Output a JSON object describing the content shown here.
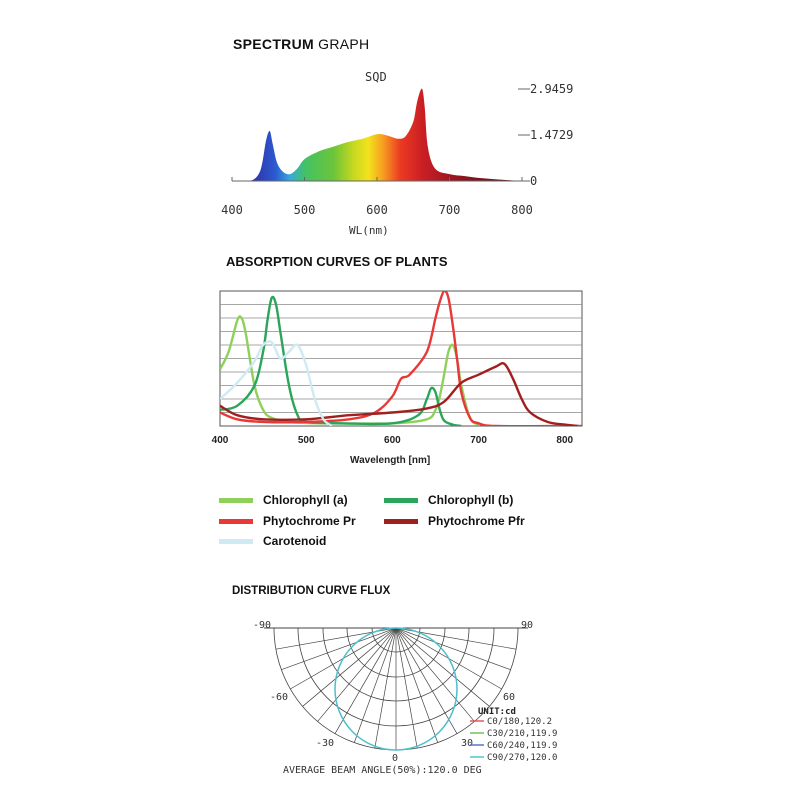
{
  "sections": {
    "spectrum_title_bold": "SPECTRUM",
    "spectrum_title_light": "GRAPH",
    "absorption_title": "ABSORPTION CURVES OF PLANTS",
    "distribution_title": "DISTRIBUTION CURVE FLUX"
  },
  "chart_data": [
    {
      "type": "area",
      "label_top": "SQD",
      "xlabel": "WL(nm)",
      "xlim": [
        400,
        800
      ],
      "xticks": [
        "400",
        "500",
        "600",
        "700",
        "800"
      ],
      "ylim": [
        0,
        2.9459
      ],
      "yticks": [
        "2.9459",
        "1.4729",
        "0"
      ],
      "color_scale": "wavelength spectrum",
      "x": [
        415,
        430,
        440,
        447,
        452,
        456,
        462,
        470,
        480,
        490,
        500,
        520,
        540,
        560,
        580,
        600,
        615,
        630,
        640,
        650,
        655,
        660,
        663,
        666,
        670,
        680,
        700,
        720,
        740,
        760,
        780,
        800
      ],
      "y": [
        0,
        0.05,
        0.4,
        1.3,
        1.6,
        1.2,
        0.6,
        0.3,
        0.22,
        0.4,
        0.7,
        0.95,
        1.1,
        1.25,
        1.35,
        1.5,
        1.45,
        1.35,
        1.45,
        1.9,
        2.5,
        2.9,
        2.9,
        2.3,
        1.1,
        0.4,
        0.22,
        0.16,
        0.1,
        0.06,
        0.03,
        0
      ]
    },
    {
      "type": "line",
      "xlabel": "Wavelength [nm]",
      "xlim": [
        400,
        820
      ],
      "xticks": [
        "400",
        "500",
        "600",
        "700",
        "800"
      ],
      "grid": true,
      "legend": "bottom",
      "series": [
        {
          "name": "Chlorophyll (a)",
          "color": "#8fd05a",
          "x": [
            400,
            410,
            420,
            425,
            430,
            440,
            450,
            460,
            480,
            520,
            600,
            640,
            650,
            655,
            660,
            665,
            670,
            675,
            680,
            690,
            700
          ],
          "y": [
            0.42,
            0.55,
            0.78,
            0.8,
            0.68,
            0.3,
            0.12,
            0.06,
            0.03,
            0.02,
            0.02,
            0.05,
            0.12,
            0.22,
            0.38,
            0.55,
            0.6,
            0.5,
            0.3,
            0.06,
            0.01
          ]
        },
        {
          "name": "Chlorophyll (b)",
          "color": "#2aa55a",
          "x": [
            400,
            420,
            440,
            450,
            455,
            460,
            465,
            470,
            480,
            490,
            500,
            540,
            600,
            630,
            640,
            645,
            650,
            655,
            660,
            670,
            680
          ],
          "y": [
            0.12,
            0.15,
            0.3,
            0.55,
            0.78,
            0.95,
            0.9,
            0.7,
            0.3,
            0.08,
            0.03,
            0.02,
            0.02,
            0.08,
            0.2,
            0.28,
            0.25,
            0.12,
            0.04,
            0.01,
            0
          ]
        },
        {
          "name": "Phytochrome Pr",
          "color": "#e83838",
          "x": [
            400,
            420,
            450,
            500,
            550,
            580,
            600,
            610,
            620,
            640,
            650,
            655,
            660,
            665,
            670,
            675,
            680,
            690,
            700,
            720,
            800,
            820
          ],
          "y": [
            0.1,
            0.05,
            0.03,
            0.03,
            0.05,
            0.1,
            0.22,
            0.35,
            0.38,
            0.55,
            0.8,
            0.92,
            1.0,
            0.95,
            0.75,
            0.5,
            0.25,
            0.06,
            0.02,
            0,
            0,
            0
          ]
        },
        {
          "name": "Phytochrome Pfr",
          "color": "#a01f1f",
          "x": [
            400,
            420,
            450,
            500,
            550,
            600,
            640,
            660,
            680,
            700,
            720,
            730,
            740,
            750,
            760,
            780,
            800,
            815
          ],
          "y": [
            0.15,
            0.08,
            0.05,
            0.05,
            0.08,
            0.1,
            0.13,
            0.18,
            0.32,
            0.38,
            0.44,
            0.46,
            0.35,
            0.2,
            0.1,
            0.03,
            0.01,
            0.0
          ]
        },
        {
          "name": "Carotenoid",
          "color": "#cfeaf2",
          "x": [
            400,
            420,
            440,
            450,
            460,
            470,
            480,
            490,
            500,
            510,
            520,
            530
          ],
          "y": [
            0.2,
            0.32,
            0.48,
            0.6,
            0.62,
            0.5,
            0.55,
            0.6,
            0.45,
            0.2,
            0.05,
            0
          ]
        }
      ]
    },
    {
      "type": "polar",
      "angle_labels": [
        "-90",
        "90",
        "-60",
        "60",
        "-30",
        "30",
        "0"
      ],
      "unit_label": "UNIT:cd",
      "beam_angle_text": "AVERAGE BEAM ANGLE(50%):120.0 DEG",
      "series": [
        {
          "name": "C0/180,120.2",
          "color": "#e05050"
        },
        {
          "name": "C30/210,119.9",
          "color": "#6ac04a"
        },
        {
          "name": "C60/240,119.9",
          "color": "#4a6cc8"
        },
        {
          "name": "C90/270,120.0",
          "color": "#3cc4d0"
        }
      ]
    }
  ]
}
